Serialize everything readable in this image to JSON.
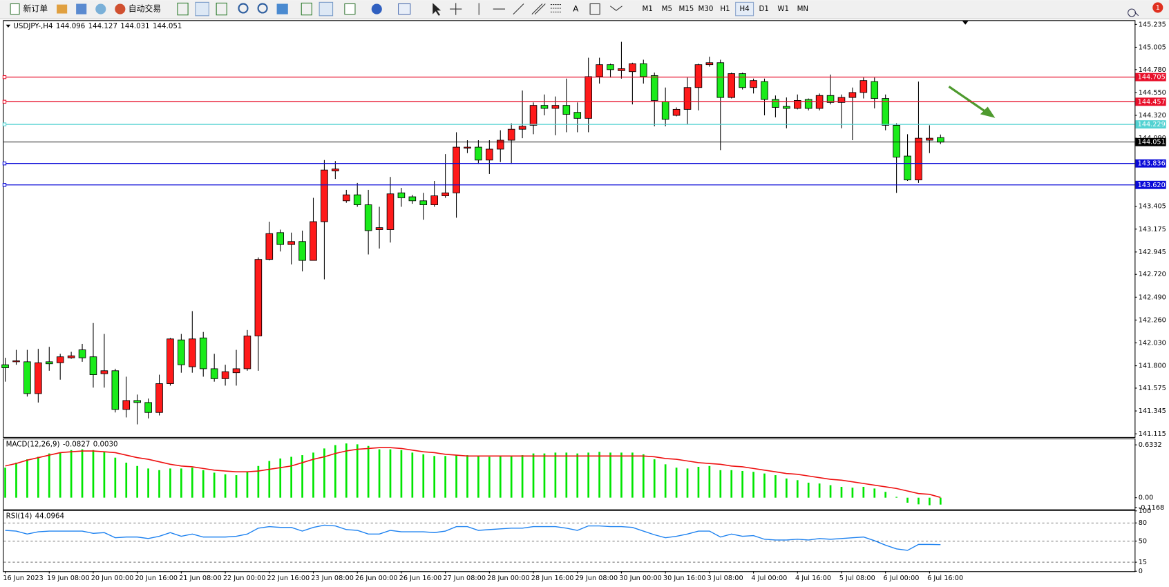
{
  "toolbar": {
    "new_order": "新订单",
    "auto_trading": "自动交易",
    "timeframes": [
      "M1",
      "M5",
      "M15",
      "M30",
      "H1",
      "H4",
      "D1",
      "W1",
      "MN"
    ],
    "active_timeframe_index": 5,
    "notifications": 1
  },
  "chart_data": [
    {
      "type": "candlestick",
      "title": "USDJPY-,H4",
      "categories": [
        "16 Jun 2023",
        null,
        null,
        null,
        "19 Jun 08:00",
        null,
        null,
        null,
        "20 Jun 00:00",
        null,
        null,
        null,
        "20 Jun 16:00",
        null,
        null,
        null,
        "21 Jun 08:00",
        null,
        null,
        null,
        "22 Jun 00:00",
        null,
        null,
        null,
        "22 Jun 16:00",
        null,
        null,
        null,
        "23 Jun 08:00",
        null,
        null,
        null,
        "26 Jun 00:00",
        null,
        null,
        null,
        "26 Jun 16:00",
        null,
        null,
        null,
        "27 Jun 08:00",
        null,
        null,
        null,
        "28 Jun 00:00",
        null,
        null,
        null,
        "28 Jun 16:00",
        null,
        null,
        null,
        "29 Jun 08:00",
        null,
        null,
        null,
        "30 Jun 00:00",
        null,
        null,
        null,
        "30 Jun 16:00",
        null,
        null,
        null,
        "3 Jul 08:00",
        null,
        null,
        null,
        "4 Jul 00:00",
        null,
        null,
        null,
        "4 Jul 16:00",
        null,
        null,
        null,
        "5 Jul 08:00",
        null,
        null,
        null,
        "6 Jul 00:00",
        null,
        null,
        null,
        "6 Jul 16:00",
        null
      ],
      "open": [
        141.81,
        141.84,
        141.84,
        141.52,
        141.84,
        141.83,
        141.88,
        141.96,
        141.89,
        141.72,
        141.75,
        141.36,
        141.45,
        141.43,
        141.33,
        141.62,
        142.06,
        141.79,
        142.08,
        141.77,
        141.67,
        141.73,
        141.77,
        142.1,
        142.87,
        143.14,
        143.02,
        143.05,
        142.86,
        143.25,
        143.76,
        143.46,
        143.52,
        143.42,
        143.17,
        143.17,
        143.54,
        143.5,
        143.46,
        143.42,
        143.51,
        143.54,
        143.99,
        144.0,
        143.87,
        143.98,
        144.07,
        144.18,
        144.22,
        144.42,
        144.39,
        144.42,
        144.35,
        144.29,
        144.71,
        144.83,
        144.77,
        144.76,
        144.84,
        144.72,
        144.46,
        144.32,
        144.38,
        144.6,
        144.83,
        144.85,
        144.5,
        144.74,
        144.6,
        144.66,
        144.48,
        144.41,
        144.39,
        144.48,
        144.39,
        144.52,
        144.45,
        144.5,
        144.55,
        144.66,
        144.49,
        144.22,
        143.91,
        143.67,
        144.07,
        144.096
      ],
      "high": [
        141.88,
        141.96,
        141.96,
        141.97,
        141.99,
        141.92,
        141.94,
        142.02,
        142.23,
        142.12,
        141.77,
        141.69,
        141.51,
        141.47,
        141.71,
        142.08,
        142.12,
        142.35,
        142.14,
        141.92,
        141.81,
        141.96,
        142.16,
        142.89,
        143.25,
        143.17,
        143.14,
        143.16,
        143.49,
        143.87,
        143.86,
        143.57,
        143.64,
        143.57,
        143.4,
        143.7,
        143.59,
        143.52,
        143.54,
        143.66,
        143.93,
        144.15,
        144.07,
        144.07,
        144.07,
        144.17,
        144.24,
        144.57,
        144.45,
        144.53,
        144.51,
        144.69,
        144.45,
        144.9,
        144.9,
        144.84,
        145.06,
        144.85,
        144.88,
        144.75,
        144.6,
        144.4,
        144.7,
        144.84,
        144.91,
        144.88,
        144.75,
        144.75,
        144.69,
        144.69,
        144.52,
        144.5,
        144.53,
        144.49,
        144.54,
        144.73,
        144.53,
        144.6,
        144.7,
        144.7,
        144.53,
        144.24,
        144.13,
        144.66,
        144.22,
        144.127
      ],
      "low": [
        141.64,
        141.81,
        141.49,
        141.43,
        141.75,
        141.66,
        141.87,
        141.84,
        141.58,
        141.58,
        141.33,
        141.28,
        141.21,
        141.27,
        141.3,
        141.6,
        141.73,
        141.73,
        141.69,
        141.64,
        141.6,
        141.6,
        141.75,
        141.75,
        142.86,
        142.95,
        142.82,
        142.75,
        142.86,
        142.67,
        143.68,
        143.44,
        143.4,
        142.92,
        142.98,
        143.04,
        143.4,
        143.43,
        143.27,
        143.4,
        143.49,
        143.29,
        143.94,
        143.83,
        143.73,
        143.85,
        143.83,
        144.09,
        144.13,
        144.32,
        144.12,
        144.15,
        144.15,
        144.15,
        144.64,
        144.7,
        144.69,
        144.43,
        144.64,
        144.21,
        144.21,
        144.31,
        144.23,
        144.37,
        144.81,
        143.97,
        144.49,
        144.58,
        144.54,
        144.32,
        144.3,
        144.19,
        144.38,
        144.37,
        144.37,
        144.43,
        144.19,
        144.07,
        144.49,
        144.39,
        144.17,
        143.54,
        143.66,
        143.64,
        143.94,
        144.031
      ],
      "close": [
        141.78,
        141.85,
        141.52,
        141.83,
        141.82,
        141.89,
        141.9,
        141.88,
        141.71,
        141.75,
        141.36,
        141.45,
        141.43,
        141.33,
        141.62,
        142.07,
        141.81,
        142.07,
        141.77,
        141.67,
        141.74,
        141.77,
        142.1,
        142.87,
        143.13,
        143.02,
        143.05,
        142.86,
        143.25,
        143.77,
        143.78,
        143.52,
        143.42,
        143.16,
        143.19,
        143.53,
        143.49,
        143.46,
        143.42,
        143.51,
        143.54,
        144.0,
        144.0,
        143.87,
        143.98,
        144.07,
        144.18,
        144.21,
        144.42,
        144.39,
        144.42,
        144.33,
        144.29,
        144.71,
        144.83,
        144.78,
        144.79,
        144.84,
        144.71,
        144.47,
        144.28,
        144.38,
        144.6,
        144.83,
        144.85,
        144.5,
        144.74,
        144.6,
        144.67,
        144.48,
        144.4,
        144.39,
        144.47,
        144.39,
        144.52,
        144.45,
        144.5,
        144.55,
        144.67,
        144.49,
        144.22,
        143.9,
        143.67,
        144.09,
        144.09,
        144.051
      ],
      "up_color": "#ff1a1a",
      "down_color": "#1aeb1a",
      "ylim": [
        141.09,
        145.27
      ],
      "yticks": [
        145.235,
        145.005,
        {
          "value": 144.78,
          "label": "144.780"
        },
        {
          "value": 144.55,
          "label": "144.550"
        },
        {
          "value": 144.32,
          "label": "144.320"
        },
        {
          "value": 144.09,
          "label": "144.090"
        },
        143.405,
        143.175,
        142.945,
        {
          "value": 142.72,
          "label": "142.720"
        },
        {
          "value": 142.49,
          "label": "142.490"
        },
        {
          "value": 142.26,
          "label": "142.260"
        },
        {
          "value": 142.03,
          "label": "142.030"
        },
        {
          "value": 141.8,
          "label": "141.800"
        },
        141.575,
        141.345,
        141.115
      ],
      "levels": [
        {
          "value": 144.705,
          "color": "#e8102a"
        },
        {
          "value": 144.457,
          "color": "#e8102a"
        },
        {
          "value": 144.229,
          "color": "#52d2d2"
        },
        {
          "value": 143.836,
          "color": "#0a0ad8"
        },
        {
          "value": 143.62,
          "label": "143.620",
          "color": "#0a0ad8"
        }
      ]
    },
    {
      "type": "macd",
      "title": "MACD(12,26,9)",
      "header_labels": [
        "-0.0827",
        "0.0030"
      ],
      "values": [
        0.36,
        0.42,
        0.46,
        0.49,
        0.53,
        0.54,
        0.57,
        0.58,
        0.57,
        0.55,
        0.48,
        0.42,
        0.38,
        0.35,
        0.33,
        0.35,
        0.35,
        0.36,
        0.33,
        0.3,
        0.28,
        0.27,
        0.31,
        0.38,
        0.44,
        0.47,
        0.49,
        0.51,
        0.54,
        0.59,
        0.63,
        0.65,
        0.64,
        0.62,
        0.58,
        0.58,
        0.57,
        0.54,
        0.52,
        0.5,
        0.5,
        0.51,
        0.51,
        0.5,
        0.49,
        0.5,
        0.5,
        0.51,
        0.53,
        0.53,
        0.54,
        0.54,
        0.53,
        0.54,
        0.55,
        0.54,
        0.54,
        0.54,
        0.52,
        0.46,
        0.4,
        0.36,
        0.35,
        0.37,
        0.38,
        0.33,
        0.33,
        0.32,
        0.31,
        0.29,
        0.27,
        0.23,
        0.21,
        0.18,
        0.17,
        0.15,
        0.13,
        0.12,
        0.13,
        0.11,
        0.07,
        0.01,
        -0.06,
        -0.08,
        -0.09,
        -0.0827
      ],
      "color": "#00e600",
      "signal": [
        0.38,
        0.41,
        0.45,
        0.48,
        0.51,
        0.54,
        0.55,
        0.56,
        0.56,
        0.55,
        0.54,
        0.51,
        0.48,
        0.46,
        0.43,
        0.4,
        0.38,
        0.37,
        0.35,
        0.33,
        0.32,
        0.31,
        0.31,
        0.32,
        0.34,
        0.36,
        0.38,
        0.42,
        0.46,
        0.49,
        0.53,
        0.56,
        0.58,
        0.59,
        0.6,
        0.6,
        0.59,
        0.57,
        0.55,
        0.54,
        0.52,
        0.51,
        0.5,
        0.5,
        0.5,
        0.5,
        0.5,
        0.5,
        0.5,
        0.5,
        0.5,
        0.5,
        0.5,
        0.5,
        0.5,
        0.5,
        0.5,
        0.5,
        0.5,
        0.49,
        0.47,
        0.46,
        0.44,
        0.42,
        0.41,
        0.4,
        0.38,
        0.37,
        0.35,
        0.33,
        0.31,
        0.29,
        0.28,
        0.26,
        0.24,
        0.22,
        0.21,
        0.19,
        0.17,
        0.15,
        0.13,
        0.11,
        0.08,
        0.05,
        0.04,
        0.003
      ],
      "signal_color": "#ee1111",
      "ylim": [
        -0.14,
        0.7
      ],
      "yticks": [
        0.6332,
        {
          "value": 0,
          "label": "0.00"
        },
        -0.1168
      ]
    },
    {
      "type": "line",
      "title": "RSI(14)",
      "values": [
        67.7,
        66.5,
        61.6,
        65.3,
        66.5,
        66.5,
        66.5,
        66.5,
        62.8,
        64.0,
        55.5,
        56.7,
        56.7,
        54.2,
        57.9,
        64.0,
        57.9,
        61.6,
        56.7,
        56.7,
        56.7,
        57.9,
        61.6,
        71.4,
        73.9,
        72.6,
        72.6,
        66.5,
        72.6,
        76.3,
        75.1,
        69.0,
        67.7,
        61.6,
        61.6,
        67.7,
        65.3,
        65.3,
        65.3,
        64.0,
        66.5,
        73.9,
        73.9,
        67.7,
        69.0,
        70.2,
        71.4,
        71.4,
        73.9,
        73.9,
        73.9,
        71.4,
        67.7,
        75.1,
        75.1,
        73.9,
        73.9,
        72.6,
        66.5,
        60.4,
        55.5,
        57.9,
        61.6,
        66.5,
        66.5,
        56.7,
        61.6,
        57.9,
        59.1,
        53.0,
        51.8,
        51.8,
        53.0,
        51.8,
        54.2,
        53.0,
        54.2,
        55.5,
        56.7,
        50.6,
        43.2,
        37.1,
        34.6,
        44.4,
        44.4,
        44.0964
      ],
      "color": "#1e82f0",
      "ylim": [
        0,
        100
      ],
      "yticks": [
        100,
        80,
        50,
        15,
        0
      ]
    }
  ]
}
